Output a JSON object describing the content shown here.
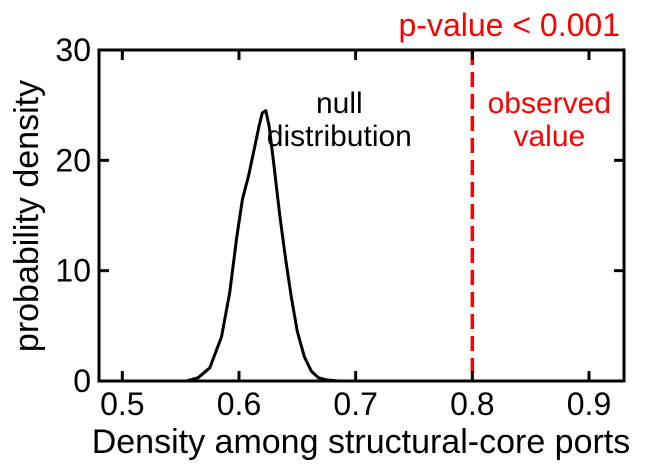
{
  "chart_data": {
    "type": "line",
    "title": "p-value < 0.001",
    "xlabel": "Density among structural-core ports",
    "ylabel": "probability density",
    "xlim": [
      0.48,
      0.93
    ],
    "ylim": [
      0,
      30
    ],
    "x_ticks": [
      0.5,
      0.6,
      0.7,
      0.8,
      0.9
    ],
    "y_ticks": [
      0,
      10,
      20,
      30
    ],
    "grid": false,
    "series": [
      {
        "color": "#000000",
        "x": [
          0.555,
          0.565,
          0.575,
          0.585,
          0.592,
          0.598,
          0.603,
          0.608,
          0.613,
          0.617,
          0.62,
          0.623,
          0.626,
          0.63,
          0.635,
          0.64,
          0.645,
          0.65,
          0.656,
          0.662,
          0.668,
          0.675,
          0.685,
          0.695
        ],
        "y": [
          0.0,
          0.3,
          1.2,
          4.0,
          8.0,
          13.0,
          16.5,
          18.5,
          21.0,
          23.0,
          24.3,
          24.5,
          23.0,
          19.5,
          15.0,
          11.0,
          7.5,
          4.5,
          2.2,
          0.9,
          0.3,
          0.1,
          0.0,
          0.0
        ]
      }
    ],
    "reference_line": {
      "x": 0.8,
      "color": "#ff0000",
      "style": "dashed"
    },
    "annotations": [
      {
        "lines": [
          "null",
          "distribution"
        ],
        "x": 0.686,
        "y": 21.3,
        "color": "#000000"
      },
      {
        "lines": [
          "observed",
          "value"
        ],
        "x": 0.866,
        "y": 21.3,
        "color": "#ff0000"
      }
    ],
    "title_color": "#ff0000"
  }
}
